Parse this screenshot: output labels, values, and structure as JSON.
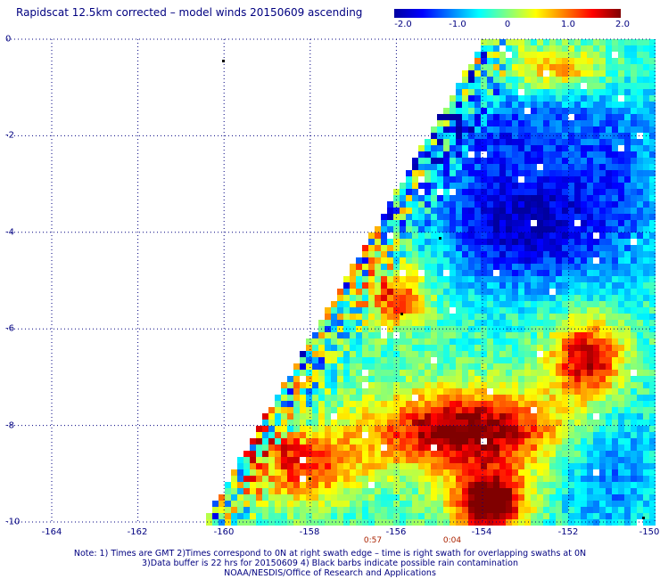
{
  "title": "Rapidscat 12.5km corrected – model winds 20150609 ascending",
  "colorbar": {
    "min": -2.0,
    "max": 2.0,
    "labels": [
      "-2.0",
      "-1.0",
      "0",
      "1.0",
      "2.0"
    ],
    "colors": [
      "#0000a0",
      "#0000ff",
      "#0080ff",
      "#00ffff",
      "#80ff80",
      "#ffff00",
      "#ff8000",
      "#ff0000",
      "#800000"
    ]
  },
  "axes": {
    "lon_range": [
      -165,
      -150
    ],
    "lat_range": [
      -10,
      0
    ],
    "x_ticks": [
      "-164",
      "-162",
      "-160",
      "-158",
      "-156",
      "-154",
      "-152",
      "-150"
    ],
    "y_ticks": [
      "0",
      "-2",
      "-4",
      "-6",
      "-8",
      "-10"
    ],
    "grid": true
  },
  "time_labels": [
    "0:57",
    "0:04"
  ],
  "notes": [
    "Note: 1) Times are GMT 2)Times correspond to 0N at right swath edge – time is right swath for overlapping swaths at 0N",
    "3)Data buffer is 22 hrs for 20150609 4) Black barbs indicate possible rain contamination",
    "NOAA/NESDIS/Office of Research and Applications"
  ]
}
